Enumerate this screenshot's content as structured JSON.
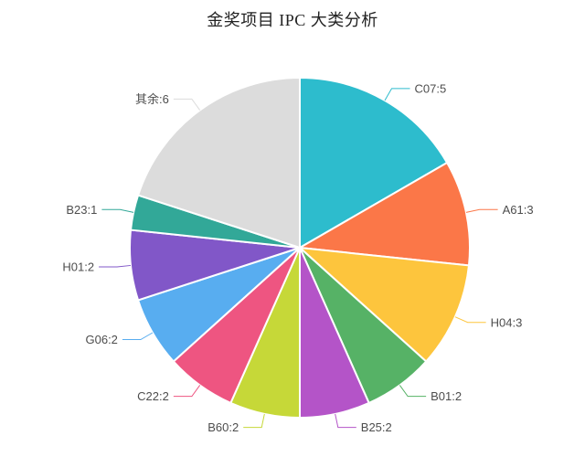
{
  "chart_data": {
    "type": "pie",
    "title": "金奖项目 IPC 大类分析",
    "legend_position": "none",
    "grid": false,
    "total": 30,
    "label_format": "name:value",
    "label_color": "#4d4d4d",
    "slice_border_color": "#ffffff",
    "start_angle_deg": 0,
    "direction": "clockwise",
    "series": [
      {
        "name": "C07",
        "value": 5,
        "label": "C07:5",
        "color": "#2dbccd"
      },
      {
        "name": "A61",
        "value": 3,
        "label": "A61:3",
        "color": "#fb7748"
      },
      {
        "name": "H04",
        "value": 3,
        "label": "H04:3",
        "color": "#fdc53d"
      },
      {
        "name": "B01",
        "value": 2,
        "label": "B01:2",
        "color": "#56b266"
      },
      {
        "name": "B25",
        "value": 2,
        "label": "B25:2",
        "color": "#b454c8"
      },
      {
        "name": "B60",
        "value": 2,
        "label": "B60:2",
        "color": "#c6d838"
      },
      {
        "name": "C22",
        "value": 2,
        "label": "C22:2",
        "color": "#ee5581"
      },
      {
        "name": "G06",
        "value": 2,
        "label": "G06:2",
        "color": "#58adf0"
      },
      {
        "name": "H01",
        "value": 2,
        "label": "H01:2",
        "color": "#8157c8"
      },
      {
        "name": "B23",
        "value": 1,
        "label": "B23:1",
        "color": "#32a898"
      },
      {
        "name": "其余",
        "value": 6,
        "label": "其余:6",
        "color": "#dcdcdc"
      }
    ]
  }
}
